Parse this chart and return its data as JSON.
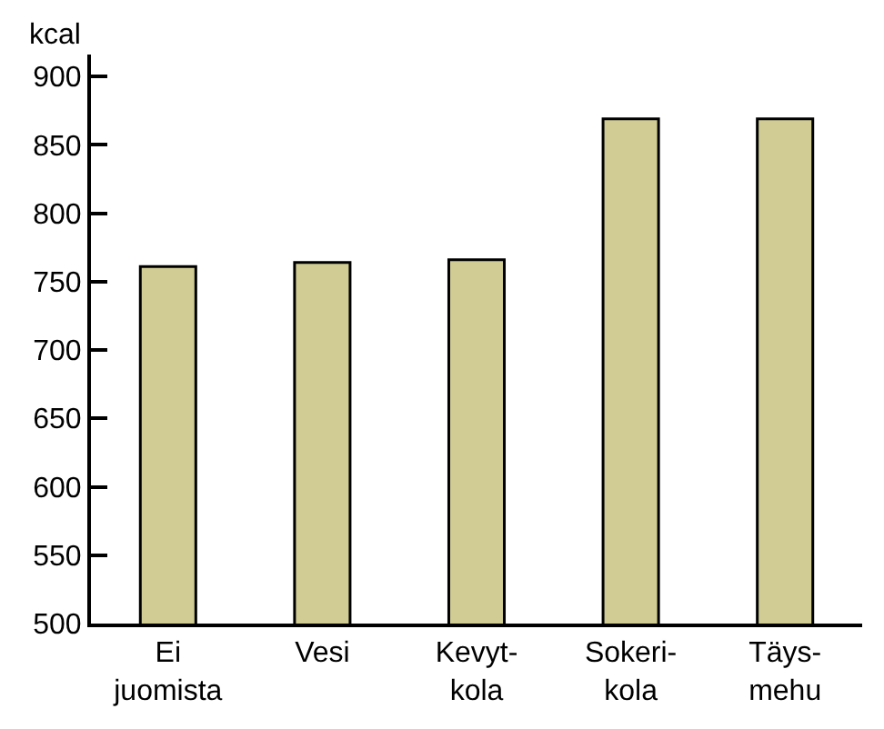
{
  "chart_data": {
    "type": "bar",
    "ylabel": "kcal",
    "categories": [
      "Ei\njuomista",
      "Vesi",
      "Kevyt-\nkola",
      "Sokeri-\nkola",
      "Täys-\nmehu"
    ],
    "values": [
      761,
      764,
      766,
      869,
      869
    ],
    "color": "#d0cc94",
    "ylim": [
      500,
      916
    ],
    "yticks": [
      500,
      550,
      600,
      650,
      700,
      750,
      800,
      850,
      900
    ],
    "grid": false
  }
}
